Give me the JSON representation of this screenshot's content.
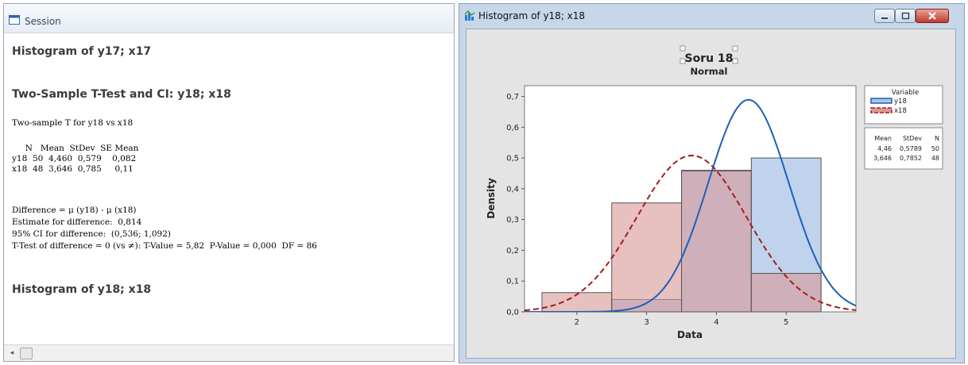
{
  "session": {
    "title": "Session",
    "headings": [
      "Histogram of y17; x17",
      "Two-Sample T-Test and CI: y18; x18",
      "Histogram of y18; x18"
    ],
    "lines": [
      "Two-sample T for y18 vs x18",
      "     N   Mean  StDev  SE Mean",
      "y18  50  4,460  0,579    0,082",
      "x18  48  3,646  0,785     0,11",
      "Difference = μ (y18) - μ (x18)",
      "Estimate for difference:  0,814",
      "95% CI for difference:  (0,536; 1,092)",
      "T-Test of difference = 0 (vs ≠): T-Value = 5,82  P-Value = 0,000  DF = 86"
    ]
  },
  "graph_window": {
    "title": "Histogram of y18; x18",
    "buttons": {
      "minimize": "minimize-icon",
      "maximize": "maximize-icon",
      "close": "close-icon"
    }
  },
  "chart_data": {
    "type": "bar",
    "title": "Soru 18",
    "subtitle": "Normal",
    "xlabel": "Data",
    "ylabel": "Density",
    "xlim": [
      1.25,
      6.0
    ],
    "ylim": [
      0,
      0.735
    ],
    "yticks": [
      "0,0",
      "0,1",
      "0,2",
      "0,3",
      "0,4",
      "0,5",
      "0,6",
      "0,7"
    ],
    "ytick_values": [
      0,
      0.1,
      0.2,
      0.3,
      0.4,
      0.5,
      0.6,
      0.7
    ],
    "xticks": [
      "2",
      "3",
      "4",
      "5"
    ],
    "xtick_values": [
      2,
      3,
      4,
      5
    ],
    "bin_edges": [
      1.5,
      2.5,
      3.5,
      4.5,
      5.5
    ],
    "series": [
      {
        "name": "y18",
        "color": "#1f5fb5",
        "fill": "#a9c4e6",
        "mean": 4.46,
        "stdev": 0.5789,
        "n": 50,
        "values": [
          0,
          0.04,
          0.46,
          0.5
        ]
      },
      {
        "name": "x18",
        "color": "#a51c1c",
        "fill": "#d99a9a",
        "mean": 3.646,
        "stdev": 0.7852,
        "n": 48,
        "values": [
          0.0625,
          0.354,
          0.458,
          0.125
        ]
      }
    ],
    "legend": {
      "title": "Variable",
      "entries": [
        "y18",
        "x18"
      ],
      "stats_header": [
        "Mean",
        "StDev",
        "N"
      ],
      "stats_rows": [
        [
          "4,46",
          "0,5789",
          "50"
        ],
        [
          "3,646",
          "0,7852",
          "48"
        ]
      ]
    }
  }
}
